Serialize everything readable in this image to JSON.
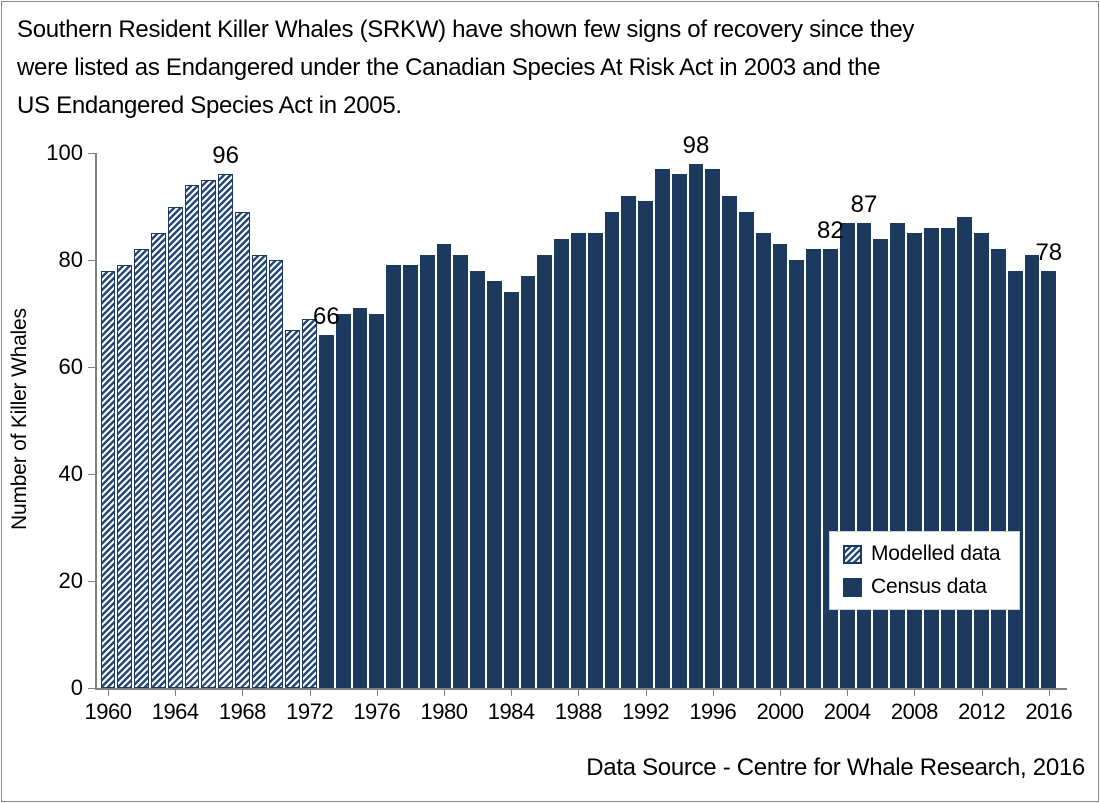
{
  "title": {
    "lines": [
      "Southern Resident Killer Whales (SRKW) have shown few signs of recovery since they",
      "were listed as Endangered under the Canadian Species At Risk Act in 2003 and the",
      "US Endangered Species Act in 2005."
    ]
  },
  "footer": {
    "source_text": "Data Source - Centre for Whale Research, 2016"
  },
  "legend": {
    "items": [
      {
        "label": "Modelled data",
        "style": "hatched",
        "swatch_icon": "hatched-swatch"
      },
      {
        "label": "Census data",
        "style": "solid",
        "swatch_icon": "solid-swatch"
      }
    ]
  },
  "colors": {
    "bar_navy": "#1c395e",
    "hatch_navy": "#24497a",
    "axis_gray": "#808080"
  },
  "chart_data": {
    "type": "bar",
    "title": "Southern Resident Killer Whales (SRKW) have shown few signs of recovery since they were listed as Endangered under the Canadian Species At Risk Act in 2003 and the US Endangered Species Act in 2005.",
    "xlabel": "",
    "ylabel": "Number of Killer Whales",
    "ylim": [
      0,
      100
    ],
    "y_ticks": [
      0,
      20,
      40,
      60,
      80,
      100
    ],
    "x_tick_years": [
      1960,
      1964,
      1968,
      1972,
      1976,
      1980,
      1984,
      1988,
      1992,
      1996,
      2000,
      2004,
      2008,
      2012,
      2016
    ],
    "grid": false,
    "legend_position": "inside-right",
    "series": [
      {
        "name": "Modelled data",
        "style": "hatched",
        "start_year": 1960,
        "values": [
          78,
          79,
          82,
          85,
          90,
          94,
          95,
          96,
          89,
          81,
          80,
          67,
          69
        ]
      },
      {
        "name": "Census data",
        "style": "solid",
        "start_year": 1973,
        "values": [
          66,
          70,
          71,
          70,
          79,
          79,
          81,
          83,
          81,
          78,
          76,
          74,
          77,
          81,
          84,
          85,
          85,
          89,
          92,
          91,
          97,
          96,
          98,
          97,
          92,
          89,
          85,
          83,
          80,
          82,
          82,
          87,
          87,
          84,
          87,
          85,
          86,
          86,
          88,
          85,
          82,
          78,
          81,
          78
        ]
      }
    ],
    "data_labels": [
      {
        "year": 1967,
        "text": "96"
      },
      {
        "year": 1973,
        "text": "66"
      },
      {
        "year": 1995,
        "text": "98"
      },
      {
        "year": 2003,
        "text": "82"
      },
      {
        "year": 2005,
        "text": "87"
      },
      {
        "year": 2016,
        "text": "78"
      }
    ]
  }
}
